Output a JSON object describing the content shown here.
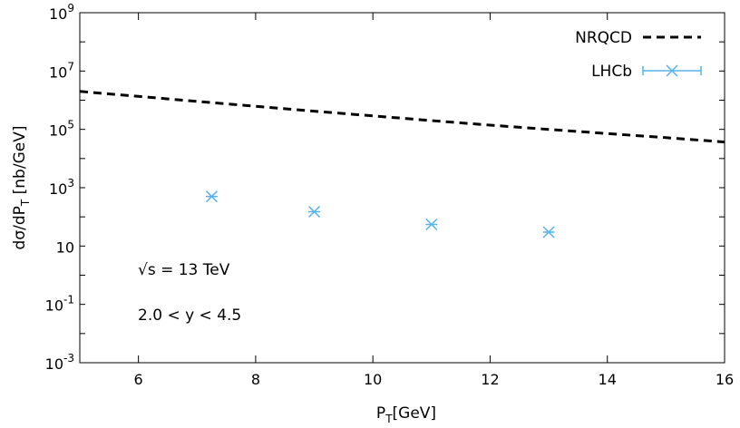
{
  "chart_data": {
    "type": "line",
    "title": "",
    "xlabel": {
      "base": "P",
      "sub": "T",
      "rest": "[GeV]"
    },
    "ylabel": {
      "pre": "dσ/dP",
      "sub": "T",
      "post": " [nb/GeV]"
    },
    "xlim": [
      5,
      16
    ],
    "ylim_log10": [
      -3,
      9
    ],
    "log_y": true,
    "grid": false,
    "legend_position": "top-right",
    "x_ticks": [
      6,
      8,
      10,
      12,
      14,
      16
    ],
    "y_ticks": [
      {
        "exp": 9,
        "text": "10",
        "sup": "9"
      },
      {
        "exp": 7,
        "text": "10",
        "sup": "7"
      },
      {
        "exp": 5,
        "text": "10",
        "sup": "5"
      },
      {
        "exp": 3,
        "text": "10",
        "sup": "3"
      },
      {
        "exp": 1,
        "text": "10",
        "sup": ""
      },
      {
        "exp": -1,
        "text": "10",
        "sup": "-1"
      },
      {
        "exp": -3,
        "text": "10",
        "sup": "-3"
      }
    ],
    "series": [
      {
        "name": "NRQCD",
        "kind": "dashed-line",
        "color": "#000000",
        "x": [
          5,
          6,
          7,
          8,
          9,
          10,
          11,
          12,
          13,
          14,
          15,
          16
        ],
        "y": [
          2000000,
          1350000,
          910000,
          620000,
          420000,
          290000,
          200000,
          140000,
          100000,
          72000,
          52000,
          37000
        ]
      },
      {
        "name": "LHCb",
        "kind": "points-with-errorbars",
        "color": "#56b4e9",
        "x": [
          7.25,
          9.0,
          11.0,
          13.0
        ],
        "y": [
          500,
          150,
          55,
          30
        ],
        "xerr": [
          0.1,
          0.1,
          0.1,
          0.1
        ]
      }
    ],
    "annotations": [
      {
        "text": "√s = 13 TeV"
      },
      {
        "text": "2.0 < y < 4.5"
      }
    ]
  }
}
